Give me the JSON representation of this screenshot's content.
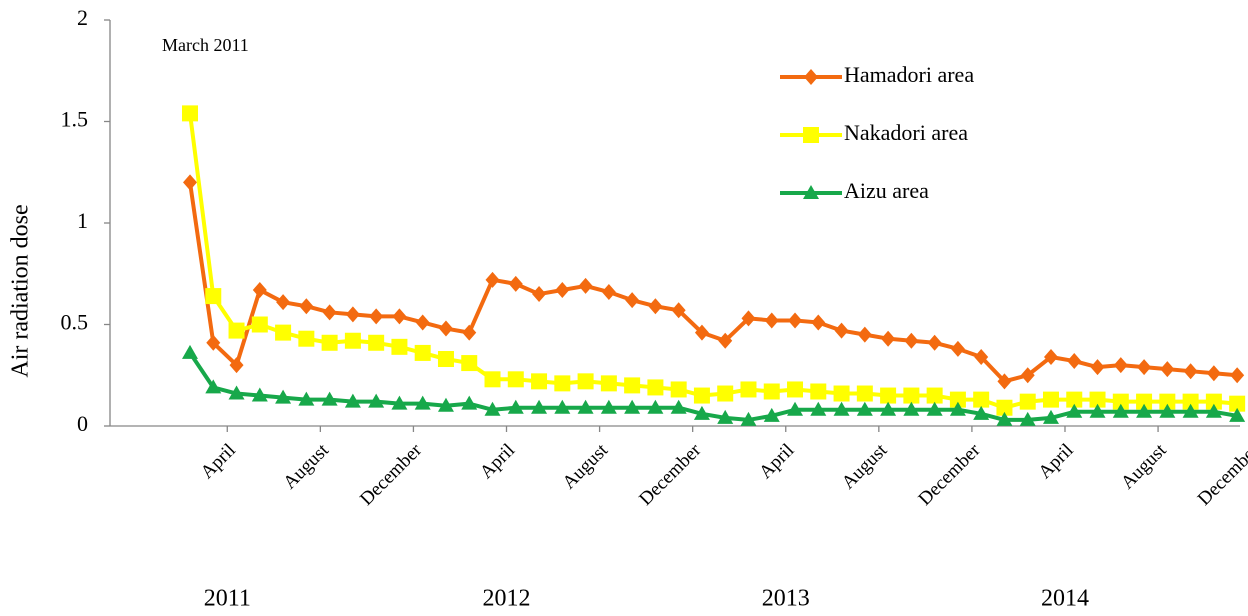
{
  "chart_data": {
    "type": "line",
    "y_label": "Air radiation dose",
    "annotation": "March 2011",
    "categories": [
      null,
      "April",
      null,
      null,
      null,
      "August",
      null,
      null,
      null,
      "December",
      null,
      null,
      null,
      "April",
      null,
      null,
      null,
      "August",
      null,
      null,
      null,
      "December",
      null,
      null,
      null,
      "April",
      null,
      null,
      null,
      "August",
      null,
      null,
      null,
      "December",
      null,
      null,
      null,
      "April",
      null,
      null,
      null,
      "August",
      null,
      null,
      null,
      "December"
    ],
    "year_labels": [
      "2011",
      "2012",
      "2013",
      "2014"
    ],
    "series": [
      {
        "name": "Hamadori area",
        "color": "#f36a10",
        "marker": "diamond",
        "values": [
          1.2,
          0.41,
          0.3,
          0.67,
          0.61,
          0.59,
          0.56,
          0.55,
          0.54,
          0.54,
          0.51,
          0.48,
          0.46,
          0.72,
          0.7,
          0.65,
          0.67,
          0.69,
          0.66,
          0.62,
          0.59,
          0.57,
          0.46,
          0.42,
          0.53,
          0.52,
          0.52,
          0.51,
          0.47,
          0.45,
          0.43,
          0.42,
          0.41,
          0.38,
          0.34,
          0.22,
          0.25,
          0.34,
          0.32,
          0.29,
          0.3,
          0.29,
          0.28,
          0.27,
          0.26,
          0.25
        ]
      },
      {
        "name": "Nakadori area",
        "color": "#ffff00",
        "marker": "square",
        "values": [
          1.54,
          0.64,
          0.47,
          0.5,
          0.46,
          0.43,
          0.41,
          0.42,
          0.41,
          0.39,
          0.36,
          0.33,
          0.31,
          0.23,
          0.23,
          0.22,
          0.21,
          0.22,
          0.21,
          0.2,
          0.19,
          0.18,
          0.15,
          0.16,
          0.18,
          0.17,
          0.18,
          0.17,
          0.16,
          0.16,
          0.15,
          0.15,
          0.15,
          0.13,
          0.13,
          0.09,
          0.12,
          0.13,
          0.13,
          0.13,
          0.12,
          0.12,
          0.12,
          0.12,
          0.12,
          0.11
        ]
      },
      {
        "name": "Aizu area",
        "color": "#17a84a",
        "marker": "triangle",
        "values": [
          0.36,
          0.19,
          0.16,
          0.15,
          0.14,
          0.13,
          0.13,
          0.12,
          0.12,
          0.11,
          0.11,
          0.1,
          0.11,
          0.08,
          0.09,
          0.09,
          0.09,
          0.09,
          0.09,
          0.09,
          0.09,
          0.09,
          0.06,
          0.04,
          0.03,
          0.05,
          0.08,
          0.08,
          0.08,
          0.08,
          0.08,
          0.08,
          0.08,
          0.08,
          0.06,
          0.03,
          0.03,
          0.04,
          0.07,
          0.07,
          0.07,
          0.07,
          0.07,
          0.07,
          0.07,
          0.05
        ]
      }
    ],
    "ylim": [
      0,
      2
    ],
    "yticks": [
      0,
      0.5,
      1,
      1.5,
      2
    ],
    "legend": "upper right",
    "grid": false
  }
}
